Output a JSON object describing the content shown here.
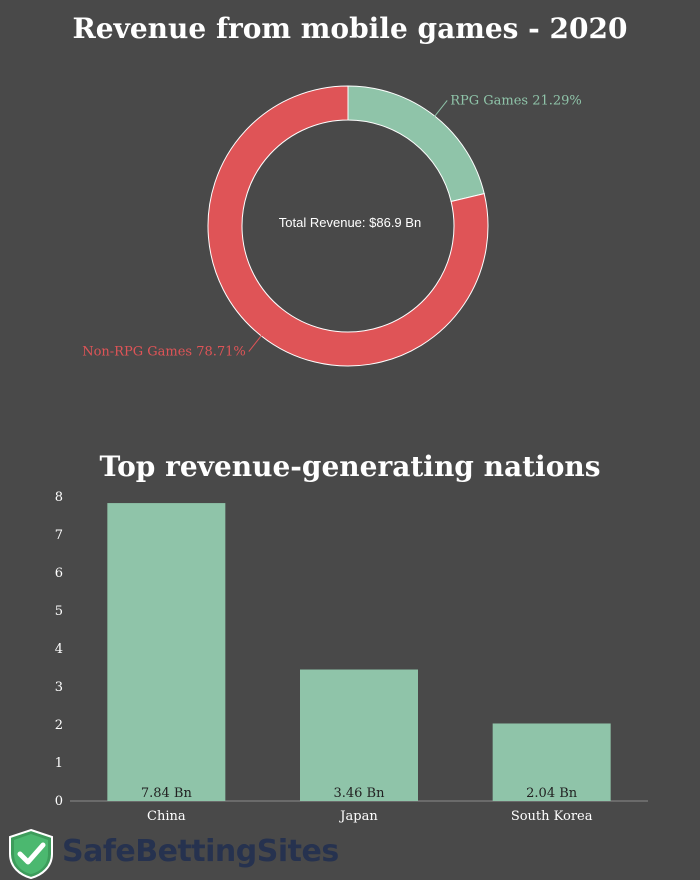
{
  "chart_data": [
    {
      "type": "pie",
      "variant": "donut",
      "title": "Revenue from mobile games - 2020",
      "center_label": "Total Revenue: $86.9 Bn",
      "slices": [
        {
          "label": "RPG Games",
          "value": 21.29,
          "display": "RPG Games 21.29%",
          "color": "#8fc4a9"
        },
        {
          "label": "Non-RPG Games",
          "value": 78.71,
          "display": "Non-RPG Games 78.71%",
          "color": "#df5457"
        }
      ]
    },
    {
      "type": "bar",
      "title": "Top revenue-generating nations",
      "categories": [
        "China",
        "Japan",
        "South Korea"
      ],
      "values": [
        7.84,
        3.46,
        2.04
      ],
      "value_labels": [
        "7.84 Bn",
        "3.46 Bn",
        "2.04 Bn"
      ],
      "ylim": [
        0,
        8
      ],
      "yticks": [
        "0",
        "1",
        "2",
        "3",
        "4",
        "5",
        "6",
        "7",
        "8"
      ],
      "bar_color": "#8fc4a9",
      "xlabel": "",
      "ylabel": ""
    }
  ],
  "brand": {
    "name": "SafeBettingSites",
    "badge_color": "#4bb86f",
    "text_color": "#26324f"
  }
}
